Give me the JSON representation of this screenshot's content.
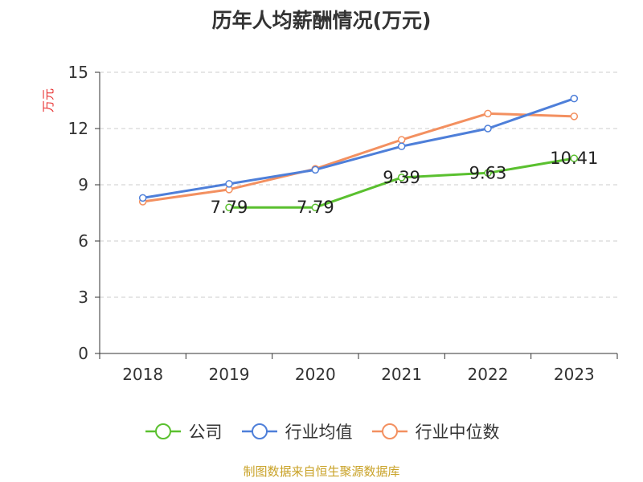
{
  "chart_data": {
    "type": "line",
    "title": "历年人均薪酬情况(万元)",
    "ylabel": "万元",
    "xlabel": "",
    "categories": [
      "2018",
      "2019",
      "2020",
      "2021",
      "2022",
      "2023"
    ],
    "ylim": [
      0,
      15
    ],
    "yticks": [
      0,
      3,
      6,
      9,
      12,
      15
    ],
    "grid": true,
    "legend_position": "bottom",
    "series": [
      {
        "name": "公司",
        "color": "#5ac02f",
        "values": [
          null,
          7.79,
          7.79,
          9.39,
          9.63,
          10.41
        ],
        "labels": [
          "",
          "7.79",
          "7.79",
          "9.39",
          "9.63",
          "10.41"
        ]
      },
      {
        "name": "行业均值",
        "color": "#4e7fd9",
        "values": [
          8.3,
          9.05,
          9.8,
          11.05,
          12.0,
          13.6
        ]
      },
      {
        "name": "行业中位数",
        "color": "#f39060",
        "values": [
          8.1,
          8.75,
          9.85,
          11.4,
          12.8,
          12.65
        ]
      }
    ]
  },
  "footer": "制图数据来自恒生聚源数据库"
}
